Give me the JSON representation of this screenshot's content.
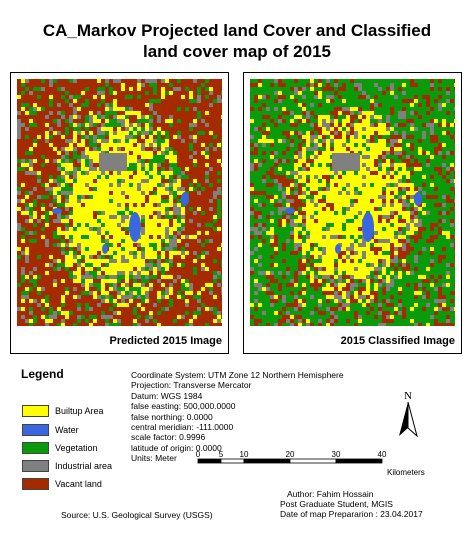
{
  "title": {
    "line1": "CA_Markov Projected land Cover and Classified",
    "line2": "land cover map of 2015"
  },
  "maps": {
    "left_caption": "Predicted 2015 Image",
    "right_caption": "2015 Classified Image"
  },
  "legend": {
    "title": "Legend",
    "items": [
      {
        "label": "Builtup Area",
        "color": "#ffff00"
      },
      {
        "label": "Water",
        "color": "#3a66e0"
      },
      {
        "label": "Vegetation",
        "color": "#0a9a0a"
      },
      {
        "label": "Industrial area",
        "color": "#808080"
      },
      {
        "label": "Vacant land",
        "color": "#a52a00"
      }
    ]
  },
  "coordinate_info": {
    "lines": [
      "Coordinate System: UTM Zone 12 Northern Hemisphere",
      "Projection: Transverse Mercator",
      "Datum: WGS 1984",
      "false easting: 500,000.0000",
      "false northing: 0.0000",
      "central meridian: -111.0000",
      "scale factor: 0.9996",
      "latitude of origin: 0.0000",
      "Units: Meter"
    ]
  },
  "north_arrow": {
    "label": "N"
  },
  "scale_bar": {
    "ticks": [
      "0",
      "5",
      "10",
      "20",
      "30",
      "40"
    ],
    "unit": "Kilometers"
  },
  "source": "Source: U.S. Geological Survey (USGS)",
  "author": {
    "lines": [
      "Author: Fahim Hossain",
      "Post Graduate Student, MGIS",
      "Date of map Prepararion : 23.04.2017"
    ]
  }
}
